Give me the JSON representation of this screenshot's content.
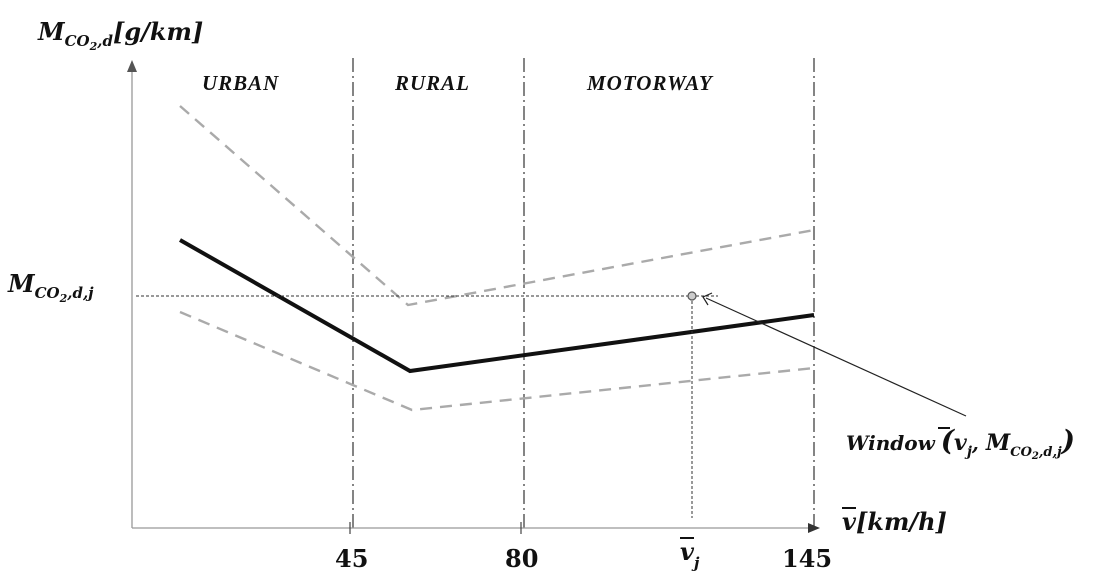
{
  "y_axis": {
    "symbol": "M",
    "subscript": "CO",
    "subscript_num": "2",
    "subscript_rest": ",d",
    "unit": "[g/km]"
  },
  "x_axis": {
    "symbol": "v",
    "unit": "[km/h]"
  },
  "regions": [
    "URBAN",
    "RURAL",
    "MOTORWAY"
  ],
  "ticks": [
    "45",
    "80",
    "145"
  ],
  "point": {
    "x_label": "v",
    "x_label_sub": "j",
    "y_label": "M",
    "y_label_sub": "CO",
    "y_label_sub_num": "2",
    "y_label_sub_rest": ",d,j"
  },
  "annotation": {
    "word": "Window",
    "v": "v",
    "v_sub": "j",
    "sep": ", ",
    "m": "M",
    "m_sub": "CO",
    "m_sub_num": "2",
    "m_sub_rest": ",d,j"
  }
}
